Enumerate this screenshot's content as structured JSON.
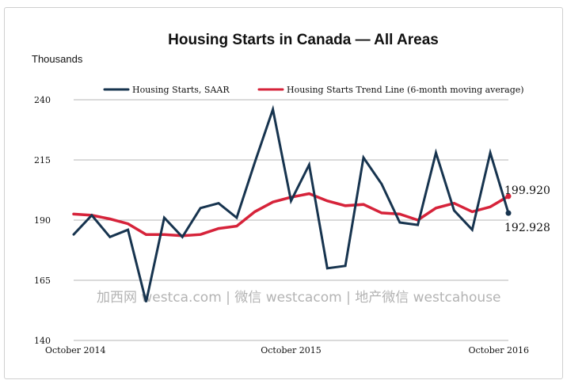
{
  "chart_data": {
    "type": "line",
    "title": "Housing Starts in Canada —  All Areas",
    "ylabel": "Thousands",
    "ylim": [
      140,
      240
    ],
    "yticks": [
      140,
      165,
      190,
      215,
      240
    ],
    "grid": true,
    "legend_position": "top",
    "x_tick_labels": [
      "October 2014",
      "October 2015",
      "October 2016"
    ],
    "x_tick_index": [
      0,
      12,
      24
    ],
    "series": [
      {
        "name": "Housing Starts, SAAR",
        "color": "#17344f",
        "values": [
          184,
          192,
          183,
          186,
          156,
          191,
          183,
          195,
          197,
          191,
          214,
          236,
          198,
          213,
          170,
          171,
          216,
          205,
          189,
          188,
          218,
          194,
          186,
          218,
          192.928
        ]
      },
      {
        "name": "Housing Starts Trend Line (6-month moving average)",
        "color": "#d6233a",
        "values": [
          192.5,
          192,
          190.5,
          188.5,
          184,
          184,
          183.5,
          184,
          186.5,
          187.5,
          193.5,
          197.5,
          199.5,
          201,
          198,
          196,
          196.5,
          193,
          192.5,
          190,
          195,
          197,
          193.5,
          195.5,
          199.92
        ]
      }
    ],
    "annotations": [
      "199.920",
      "192.928"
    ]
  },
  "watermark": "加西网 westca.com | 微信 westcacom | 地产微信 westcahouse"
}
